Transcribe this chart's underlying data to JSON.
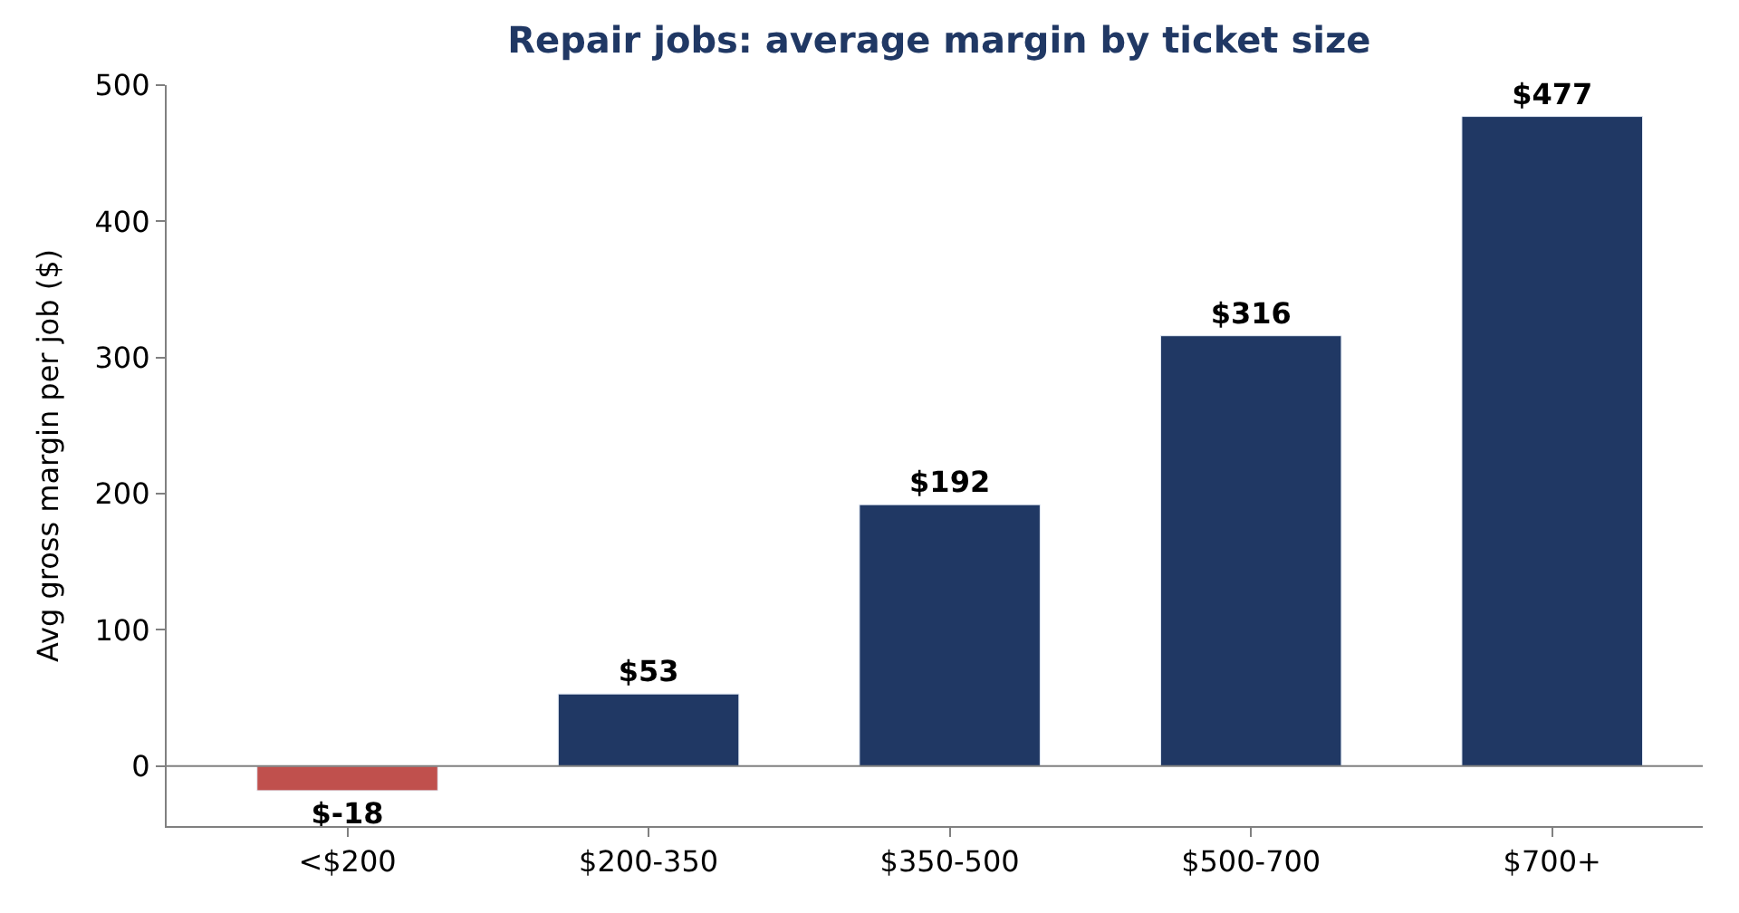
{
  "chart_data": {
    "type": "bar",
    "title": "Repair jobs: average margin by ticket size",
    "ylabel": "Avg gross margin per job ($)",
    "categories": [
      "<$200",
      "$200-350",
      "$350-500",
      "$500-700",
      "$700+"
    ],
    "values": [
      -18,
      53,
      192,
      316,
      477
    ],
    "colors": [
      "#c0504d",
      "#203864",
      "#203864",
      "#203864",
      "#203864"
    ],
    "value_labels": [
      "$-18",
      "$53",
      "$192",
      "$316",
      "$477"
    ],
    "ylim": [
      -44,
      500
    ],
    "yticks": [
      0,
      100,
      200,
      300,
      400,
      500
    ],
    "ref_lines": [
      {
        "axis": "y",
        "value": 0,
        "color": "#808080"
      }
    ]
  }
}
